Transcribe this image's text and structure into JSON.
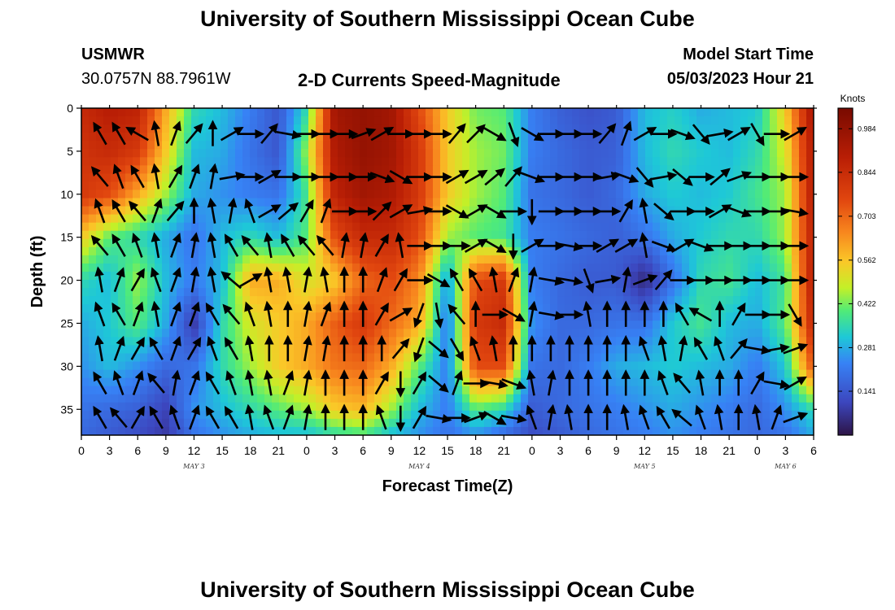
{
  "page": {
    "title_top": "University of Southern Mississippi Ocean Cube",
    "title_bottom": "University of Southern Mississippi Ocean Cube",
    "station_id": "USMWR",
    "station_coords": "30.0757N  88.7961W",
    "plot_title": "2-D Currents Speed-Magnitude",
    "model_start_label": "Model Start Time",
    "model_start_value": "05/03/2023 Hour 21"
  },
  "chart_data": {
    "type": "heatmap",
    "title": "2-D Currents Speed-Magnitude",
    "xlabel": "Forecast Time(Z)",
    "ylabel": "Depth (ft)",
    "xlim": [
      0,
      78
    ],
    "ylim": [
      38,
      0
    ],
    "x_ticks": [
      0,
      3,
      6,
      9,
      12,
      15,
      18,
      21,
      24,
      27,
      30,
      33,
      36,
      39,
      42,
      45,
      48,
      51,
      54,
      57,
      60,
      63,
      66,
      69,
      72,
      75,
      78
    ],
    "x_tick_labels": [
      "0",
      "3",
      "6",
      "9",
      "12",
      "15",
      "18",
      "21",
      "0",
      "3",
      "6",
      "9",
      "12",
      "15",
      "18",
      "21",
      "0",
      "3",
      "6",
      "9",
      "12",
      "15",
      "18",
      "21",
      "0",
      "3",
      "6"
    ],
    "y_ticks": [
      0,
      5,
      10,
      15,
      20,
      25,
      30,
      35
    ],
    "y_tick_labels": [
      "0",
      "5",
      "10",
      "15",
      "20",
      "25",
      "30",
      "35"
    ],
    "date_labels": [
      {
        "x": 12,
        "text": "MAY 3"
      },
      {
        "x": 36,
        "text": "MAY 4"
      },
      {
        "x": 60,
        "text": "MAY 5"
      },
      {
        "x": 75,
        "text": "MAY 6"
      }
    ],
    "colorbar": {
      "unit": "Knots",
      "min": 0.0,
      "max": 1.05,
      "tick_values": [
        0.141,
        0.281,
        0.422,
        0.562,
        0.703,
        0.844,
        0.984
      ],
      "tick_labels": [
        "0.141",
        "0.281",
        "0.422",
        "0.562",
        "0.703",
        "0.844",
        "0.984"
      ]
    },
    "depths": [
      0,
      5,
      10,
      15,
      20,
      25,
      30,
      35,
      38
    ],
    "times": [
      0,
      3,
      6,
      9,
      12,
      15,
      18,
      21,
      24,
      27,
      30,
      33,
      36,
      39,
      42,
      45,
      48,
      51,
      54,
      57,
      60,
      63,
      66,
      69,
      72,
      75,
      78
    ],
    "speed_knots": [
      [
        0.85,
        0.9,
        0.88,
        0.6,
        0.35,
        0.3,
        0.22,
        0.14,
        0.35,
        0.95,
        0.98,
        0.95,
        0.75,
        0.55,
        0.42,
        0.4,
        0.22,
        0.16,
        0.13,
        0.15,
        0.3,
        0.33,
        0.28,
        0.3,
        0.32,
        0.55,
        0.95
      ],
      [
        0.82,
        0.85,
        0.8,
        0.55,
        0.3,
        0.28,
        0.2,
        0.14,
        0.45,
        0.92,
        0.98,
        0.95,
        0.8,
        0.55,
        0.45,
        0.42,
        0.22,
        0.18,
        0.15,
        0.16,
        0.3,
        0.35,
        0.32,
        0.3,
        0.35,
        0.5,
        0.92
      ],
      [
        0.8,
        0.75,
        0.6,
        0.45,
        0.28,
        0.25,
        0.22,
        0.2,
        0.38,
        0.88,
        0.95,
        0.92,
        0.8,
        0.55,
        0.45,
        0.4,
        0.2,
        0.18,
        0.15,
        0.18,
        0.28,
        0.32,
        0.3,
        0.32,
        0.38,
        0.45,
        0.92
      ],
      [
        0.55,
        0.4,
        0.35,
        0.28,
        0.2,
        0.3,
        0.35,
        0.3,
        0.4,
        0.75,
        0.85,
        0.85,
        0.75,
        0.45,
        0.4,
        0.38,
        0.22,
        0.2,
        0.18,
        0.16,
        0.2,
        0.28,
        0.32,
        0.35,
        0.35,
        0.45,
        0.9
      ],
      [
        0.35,
        0.3,
        0.45,
        0.3,
        0.22,
        0.3,
        0.6,
        0.6,
        0.5,
        0.55,
        0.7,
        0.75,
        0.65,
        0.25,
        0.75,
        0.8,
        0.22,
        0.18,
        0.15,
        0.15,
        0.04,
        0.2,
        0.35,
        0.38,
        0.3,
        0.38,
        0.92
      ],
      [
        0.28,
        0.32,
        0.4,
        0.28,
        0.08,
        0.35,
        0.5,
        0.55,
        0.6,
        0.72,
        0.8,
        0.7,
        0.6,
        0.2,
        0.8,
        0.85,
        0.25,
        0.18,
        0.18,
        0.2,
        0.2,
        0.32,
        0.38,
        0.3,
        0.28,
        0.4,
        0.88
      ],
      [
        0.25,
        0.3,
        0.25,
        0.18,
        0.2,
        0.35,
        0.45,
        0.55,
        0.6,
        0.68,
        0.7,
        0.6,
        0.4,
        0.22,
        0.75,
        0.75,
        0.2,
        0.18,
        0.22,
        0.28,
        0.3,
        0.32,
        0.3,
        0.28,
        0.22,
        0.32,
        0.75
      ],
      [
        0.2,
        0.18,
        0.16,
        0.1,
        0.25,
        0.3,
        0.35,
        0.4,
        0.45,
        0.55,
        0.58,
        0.45,
        0.3,
        0.22,
        0.4,
        0.35,
        0.15,
        0.18,
        0.2,
        0.22,
        0.25,
        0.28,
        0.25,
        0.22,
        0.18,
        0.25,
        0.35
      ],
      [
        0.18,
        0.15,
        0.12,
        0.08,
        0.2,
        0.25,
        0.28,
        0.3,
        0.3,
        0.35,
        0.38,
        0.3,
        0.25,
        0.2,
        0.25,
        0.18,
        0.12,
        0.15,
        0.18,
        0.2,
        0.22,
        0.25,
        0.22,
        0.2,
        0.18,
        0.2,
        0.28
      ]
    ],
    "arrow_times": [
      2,
      4,
      6,
      8,
      10,
      12,
      14,
      16,
      18,
      20,
      22,
      24,
      26,
      28,
      30,
      32,
      34,
      36,
      38,
      40,
      42,
      44,
      46,
      48,
      50,
      52,
      54,
      56,
      58,
      60,
      62,
      64,
      66,
      68,
      70,
      72,
      74,
      76
    ],
    "arrow_depths": [
      3,
      8,
      12,
      16,
      20,
      24,
      28,
      32,
      36
    ],
    "arrow_direction_deg": [
      [
        330,
        330,
        300,
        350,
        20,
        40,
        0,
        60,
        90,
        40,
        100,
        90,
        90,
        90,
        70,
        60,
        90,
        90,
        90,
        40,
        45,
        120,
        160,
        120,
        90,
        90,
        90,
        40,
        20,
        60,
        90,
        110,
        140,
        80,
        60,
        150,
        90,
        60
      ],
      [
        320,
        340,
        330,
        350,
        30,
        20,
        10,
        80,
        90,
        60,
        90,
        90,
        90,
        90,
        90,
        110,
        120,
        90,
        90,
        60,
        60,
        50,
        40,
        110,
        90,
        90,
        90,
        80,
        110,
        140,
        80,
        130,
        90,
        50,
        70,
        90,
        90,
        90
      ],
      [
        340,
        330,
        320,
        20,
        40,
        0,
        350,
        10,
        340,
        60,
        50,
        30,
        20,
        90,
        90,
        45,
        60,
        80,
        90,
        120,
        60,
        120,
        90,
        180,
        90,
        90,
        90,
        90,
        30,
        350,
        130,
        90,
        90,
        60,
        110,
        90,
        90,
        100
      ],
      [
        320,
        330,
        340,
        350,
        20,
        10,
        350,
        330,
        320,
        350,
        330,
        320,
        320,
        10,
        10,
        30,
        350,
        90,
        90,
        90,
        60,
        120,
        180,
        60,
        90,
        100,
        90,
        60,
        60,
        350,
        110,
        60,
        110,
        90,
        90,
        90,
        90,
        90
      ],
      [
        350,
        20,
        30,
        340,
        20,
        10,
        350,
        310,
        60,
        350,
        350,
        10,
        350,
        0,
        0,
        20,
        30,
        90,
        120,
        330,
        330,
        350,
        20,
        10,
        100,
        100,
        160,
        80,
        10,
        70,
        40,
        90,
        90,
        90,
        90,
        90,
        90,
        90
      ],
      [
        340,
        330,
        20,
        350,
        20,
        20,
        330,
        320,
        340,
        350,
        0,
        10,
        20,
        0,
        0,
        30,
        60,
        200,
        170,
        320,
        0,
        90,
        120,
        10,
        100,
        90,
        350,
        0,
        0,
        0,
        0,
        330,
        300,
        0,
        30,
        90,
        90,
        150
      ],
      [
        350,
        20,
        30,
        330,
        20,
        30,
        340,
        330,
        350,
        0,
        0,
        10,
        10,
        0,
        0,
        0,
        40,
        200,
        130,
        150,
        340,
        350,
        0,
        0,
        0,
        0,
        0,
        0,
        0,
        340,
        350,
        10,
        330,
        340,
        40,
        100,
        80,
        70
      ],
      [
        330,
        340,
        20,
        320,
        10,
        20,
        330,
        340,
        350,
        350,
        20,
        10,
        0,
        0,
        0,
        30,
        180,
        30,
        130,
        20,
        90,
        100,
        110,
        350,
        10,
        0,
        0,
        0,
        0,
        0,
        340,
        320,
        350,
        0,
        0,
        30,
        100,
        60
      ],
      [
        330,
        320,
        30,
        330,
        340,
        20,
        330,
        330,
        350,
        340,
        20,
        10,
        0,
        0,
        0,
        340,
        180,
        30,
        100,
        90,
        70,
        120,
        100,
        340,
        10,
        350,
        0,
        0,
        350,
        340,
        330,
        310,
        340,
        350,
        0,
        350,
        20,
        70
      ]
    ]
  }
}
